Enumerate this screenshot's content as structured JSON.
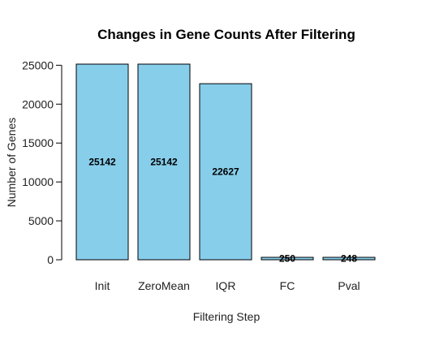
{
  "chart_data": {
    "type": "bar",
    "title": "Changes in Gene Counts After Filtering",
    "xlabel": "Filtering Step",
    "ylabel": "Number of Genes",
    "categories": [
      "Init",
      "ZeroMean",
      "IQR",
      "FC",
      "Pval"
    ],
    "values": [
      25142,
      25142,
      22627,
      250,
      248
    ],
    "data_labels": [
      "25142",
      "25142",
      "22627",
      "250",
      "248"
    ],
    "yticks": [
      0,
      5000,
      10000,
      15000,
      20000,
      25000
    ],
    "ytick_labels": [
      "0",
      "5000",
      "10000",
      "15000",
      "20000",
      "25000"
    ],
    "ylim": [
      0,
      25142
    ],
    "grid": false,
    "colors": {
      "bar_fill": "#87CEEB",
      "bar_stroke": "#000000",
      "axis": "#000000"
    }
  }
}
